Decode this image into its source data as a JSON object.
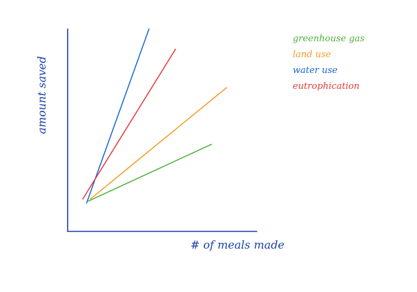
{
  "chart_data": {
    "type": "line",
    "title": "",
    "xlabel": "# of meals made",
    "ylabel": "amount saved",
    "xlim": [
      0,
      10
    ],
    "ylim": [
      0,
      10
    ],
    "grid": false,
    "legend_position": "top-right",
    "series": [
      {
        "name": "greenhouse gas",
        "color": "#4caf3a",
        "x": [
          1.1,
          7.6
        ],
        "y": [
          1.5,
          4.3
        ]
      },
      {
        "name": "land use",
        "color": "#f59a23",
        "x": [
          1.2,
          8.4
        ],
        "y": [
          1.6,
          7.1
        ]
      },
      {
        "name": "water use",
        "color": "#1565d8",
        "x": [
          1.0,
          4.3
        ],
        "y": [
          1.4,
          10.0
        ]
      },
      {
        "name": "eutrophication",
        "color": "#e53935",
        "x": [
          0.8,
          5.7
        ],
        "y": [
          1.6,
          9.0
        ]
      }
    ]
  }
}
